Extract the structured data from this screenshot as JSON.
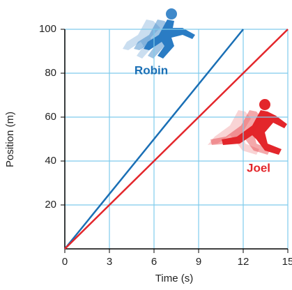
{
  "chart_data": {
    "type": "line",
    "x_label": "Time (s)",
    "y_label": "Position (m)",
    "xlim": [
      0,
      15
    ],
    "xticks": [
      0,
      3,
      6,
      9,
      12,
      15
    ],
    "ylim": [
      0,
      100
    ],
    "yticks": [
      20,
      40,
      60,
      80,
      100
    ],
    "grid": true,
    "grid_color": "#7fcbec",
    "series": [
      {
        "name": "Robin",
        "color": "#1a6fb5",
        "x": [
          0,
          12
        ],
        "values": [
          0,
          100
        ]
      },
      {
        "name": "Joel",
        "color": "#e3262b",
        "x": [
          0,
          15
        ],
        "values": [
          0,
          100
        ]
      }
    ]
  }
}
